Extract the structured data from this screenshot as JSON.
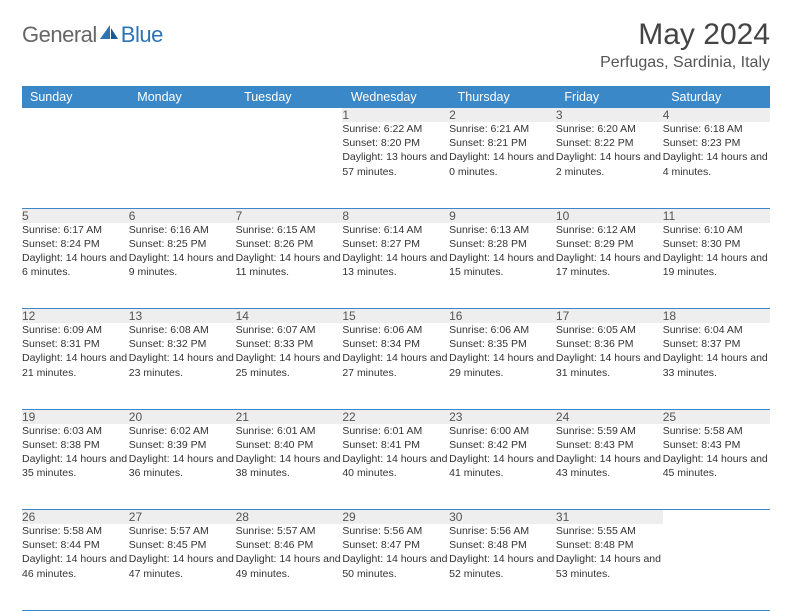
{
  "logo": {
    "general": "General",
    "blue": "Blue"
  },
  "title": "May 2024",
  "location": "Perfugas, Sardinia, Italy",
  "colors": {
    "header_bg": "#3b88c9",
    "header_text": "#ffffff",
    "daynum_bg": "#eeeeee",
    "border": "#3b88c9",
    "logo_gray": "#666666",
    "logo_blue": "#2d74b5"
  },
  "weekdays": [
    "Sunday",
    "Monday",
    "Tuesday",
    "Wednesday",
    "Thursday",
    "Friday",
    "Saturday"
  ],
  "weeks": [
    [
      null,
      null,
      null,
      {
        "num": "1",
        "sunrise": "Sunrise: 6:22 AM",
        "sunset": "Sunset: 8:20 PM",
        "daylight": "Daylight: 13 hours and 57 minutes."
      },
      {
        "num": "2",
        "sunrise": "Sunrise: 6:21 AM",
        "sunset": "Sunset: 8:21 PM",
        "daylight": "Daylight: 14 hours and 0 minutes."
      },
      {
        "num": "3",
        "sunrise": "Sunrise: 6:20 AM",
        "sunset": "Sunset: 8:22 PM",
        "daylight": "Daylight: 14 hours and 2 minutes."
      },
      {
        "num": "4",
        "sunrise": "Sunrise: 6:18 AM",
        "sunset": "Sunset: 8:23 PM",
        "daylight": "Daylight: 14 hours and 4 minutes."
      }
    ],
    [
      {
        "num": "5",
        "sunrise": "Sunrise: 6:17 AM",
        "sunset": "Sunset: 8:24 PM",
        "daylight": "Daylight: 14 hours and 6 minutes."
      },
      {
        "num": "6",
        "sunrise": "Sunrise: 6:16 AM",
        "sunset": "Sunset: 8:25 PM",
        "daylight": "Daylight: 14 hours and 9 minutes."
      },
      {
        "num": "7",
        "sunrise": "Sunrise: 6:15 AM",
        "sunset": "Sunset: 8:26 PM",
        "daylight": "Daylight: 14 hours and 11 minutes."
      },
      {
        "num": "8",
        "sunrise": "Sunrise: 6:14 AM",
        "sunset": "Sunset: 8:27 PM",
        "daylight": "Daylight: 14 hours and 13 minutes."
      },
      {
        "num": "9",
        "sunrise": "Sunrise: 6:13 AM",
        "sunset": "Sunset: 8:28 PM",
        "daylight": "Daylight: 14 hours and 15 minutes."
      },
      {
        "num": "10",
        "sunrise": "Sunrise: 6:12 AM",
        "sunset": "Sunset: 8:29 PM",
        "daylight": "Daylight: 14 hours and 17 minutes."
      },
      {
        "num": "11",
        "sunrise": "Sunrise: 6:10 AM",
        "sunset": "Sunset: 8:30 PM",
        "daylight": "Daylight: 14 hours and 19 minutes."
      }
    ],
    [
      {
        "num": "12",
        "sunrise": "Sunrise: 6:09 AM",
        "sunset": "Sunset: 8:31 PM",
        "daylight": "Daylight: 14 hours and 21 minutes."
      },
      {
        "num": "13",
        "sunrise": "Sunrise: 6:08 AM",
        "sunset": "Sunset: 8:32 PM",
        "daylight": "Daylight: 14 hours and 23 minutes."
      },
      {
        "num": "14",
        "sunrise": "Sunrise: 6:07 AM",
        "sunset": "Sunset: 8:33 PM",
        "daylight": "Daylight: 14 hours and 25 minutes."
      },
      {
        "num": "15",
        "sunrise": "Sunrise: 6:06 AM",
        "sunset": "Sunset: 8:34 PM",
        "daylight": "Daylight: 14 hours and 27 minutes."
      },
      {
        "num": "16",
        "sunrise": "Sunrise: 6:06 AM",
        "sunset": "Sunset: 8:35 PM",
        "daylight": "Daylight: 14 hours and 29 minutes."
      },
      {
        "num": "17",
        "sunrise": "Sunrise: 6:05 AM",
        "sunset": "Sunset: 8:36 PM",
        "daylight": "Daylight: 14 hours and 31 minutes."
      },
      {
        "num": "18",
        "sunrise": "Sunrise: 6:04 AM",
        "sunset": "Sunset: 8:37 PM",
        "daylight": "Daylight: 14 hours and 33 minutes."
      }
    ],
    [
      {
        "num": "19",
        "sunrise": "Sunrise: 6:03 AM",
        "sunset": "Sunset: 8:38 PM",
        "daylight": "Daylight: 14 hours and 35 minutes."
      },
      {
        "num": "20",
        "sunrise": "Sunrise: 6:02 AM",
        "sunset": "Sunset: 8:39 PM",
        "daylight": "Daylight: 14 hours and 36 minutes."
      },
      {
        "num": "21",
        "sunrise": "Sunrise: 6:01 AM",
        "sunset": "Sunset: 8:40 PM",
        "daylight": "Daylight: 14 hours and 38 minutes."
      },
      {
        "num": "22",
        "sunrise": "Sunrise: 6:01 AM",
        "sunset": "Sunset: 8:41 PM",
        "daylight": "Daylight: 14 hours and 40 minutes."
      },
      {
        "num": "23",
        "sunrise": "Sunrise: 6:00 AM",
        "sunset": "Sunset: 8:42 PM",
        "daylight": "Daylight: 14 hours and 41 minutes."
      },
      {
        "num": "24",
        "sunrise": "Sunrise: 5:59 AM",
        "sunset": "Sunset: 8:43 PM",
        "daylight": "Daylight: 14 hours and 43 minutes."
      },
      {
        "num": "25",
        "sunrise": "Sunrise: 5:58 AM",
        "sunset": "Sunset: 8:43 PM",
        "daylight": "Daylight: 14 hours and 45 minutes."
      }
    ],
    [
      {
        "num": "26",
        "sunrise": "Sunrise: 5:58 AM",
        "sunset": "Sunset: 8:44 PM",
        "daylight": "Daylight: 14 hours and 46 minutes."
      },
      {
        "num": "27",
        "sunrise": "Sunrise: 5:57 AM",
        "sunset": "Sunset: 8:45 PM",
        "daylight": "Daylight: 14 hours and 47 minutes."
      },
      {
        "num": "28",
        "sunrise": "Sunrise: 5:57 AM",
        "sunset": "Sunset: 8:46 PM",
        "daylight": "Daylight: 14 hours and 49 minutes."
      },
      {
        "num": "29",
        "sunrise": "Sunrise: 5:56 AM",
        "sunset": "Sunset: 8:47 PM",
        "daylight": "Daylight: 14 hours and 50 minutes."
      },
      {
        "num": "30",
        "sunrise": "Sunrise: 5:56 AM",
        "sunset": "Sunset: 8:48 PM",
        "daylight": "Daylight: 14 hours and 52 minutes."
      },
      {
        "num": "31",
        "sunrise": "Sunrise: 5:55 AM",
        "sunset": "Sunset: 8:48 PM",
        "daylight": "Daylight: 14 hours and 53 minutes."
      },
      null
    ]
  ]
}
